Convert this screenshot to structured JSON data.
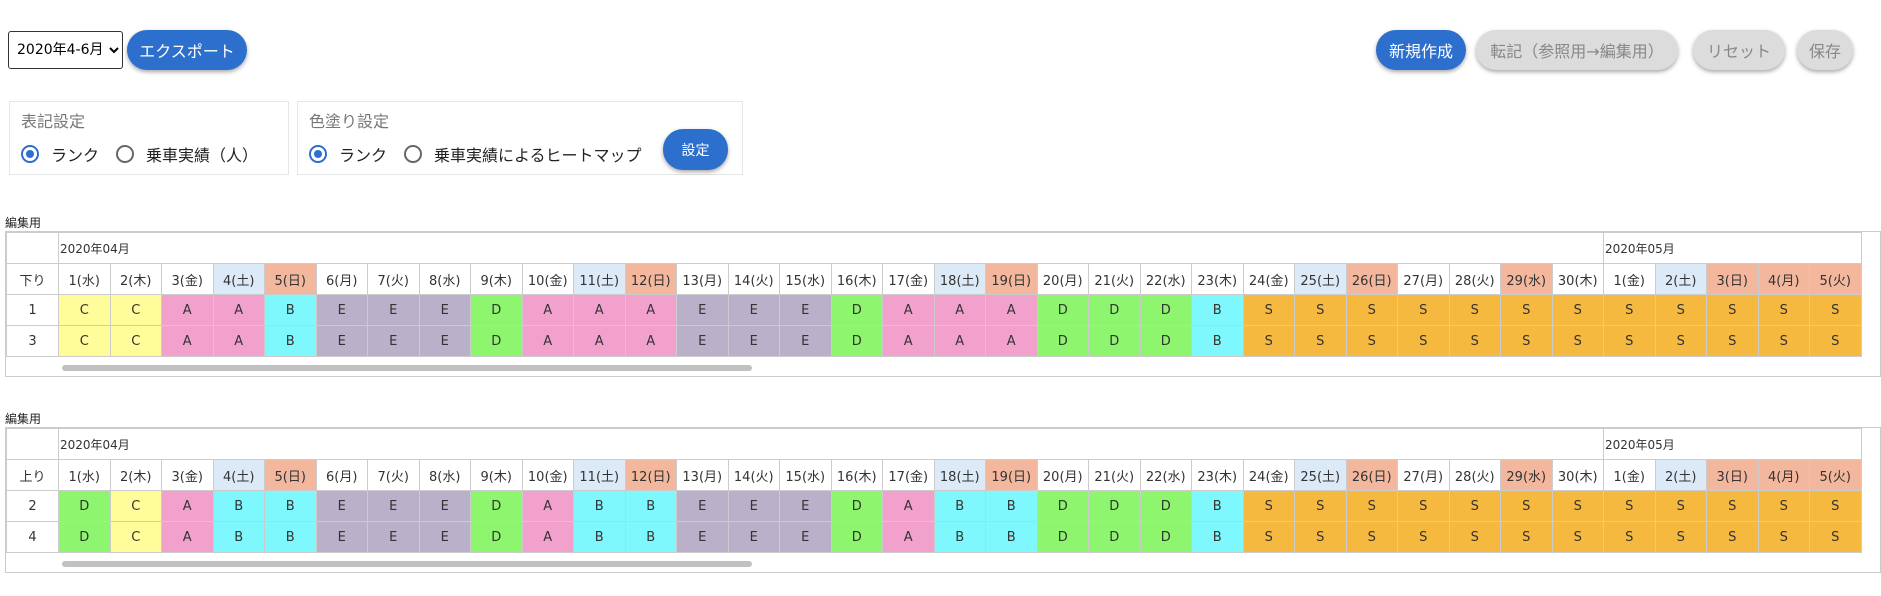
{
  "toolbar": {
    "period_value": "2020年4-6月",
    "period_options": [
      "2020年4-6月"
    ],
    "export_label": "エクスポート",
    "new_label": "新規作成",
    "transfer_label": "転記（参照用→編集用）",
    "reset_label": "リセット",
    "save_label": "保存"
  },
  "notation_panel": {
    "title": "表記設定",
    "options": [
      "ランク",
      "乗車実績（人）"
    ],
    "selected": 0
  },
  "color_panel": {
    "title": "色塗り設定",
    "options": [
      "ランク",
      "乗車実績によるヒートマップ"
    ],
    "selected": 0,
    "apply_label": "設定"
  },
  "colors": {
    "accent": "#2d6fcd",
    "rank": {
      "S": "#f5b93f",
      "A": "#f2a0cc",
      "B": "#7ef8fd",
      "C": "#fffd9a",
      "D": "#8ef56f",
      "E": "#bbb0c9"
    },
    "sat_header": "#dce9f7",
    "sun_header": "#f3b79d"
  },
  "days": [
    {
      "label": "1(水)",
      "type": "w"
    },
    {
      "label": "2(木)",
      "type": "w"
    },
    {
      "label": "3(金)",
      "type": "w"
    },
    {
      "label": "4(土)",
      "type": "sat"
    },
    {
      "label": "5(日)",
      "type": "sun"
    },
    {
      "label": "6(月)",
      "type": "w"
    },
    {
      "label": "7(火)",
      "type": "w"
    },
    {
      "label": "8(水)",
      "type": "w"
    },
    {
      "label": "9(木)",
      "type": "w"
    },
    {
      "label": "10(金)",
      "type": "w"
    },
    {
      "label": "11(土)",
      "type": "sat"
    },
    {
      "label": "12(日)",
      "type": "sun"
    },
    {
      "label": "13(月)",
      "type": "w"
    },
    {
      "label": "14(火)",
      "type": "w"
    },
    {
      "label": "15(水)",
      "type": "w"
    },
    {
      "label": "16(木)",
      "type": "w"
    },
    {
      "label": "17(金)",
      "type": "w"
    },
    {
      "label": "18(土)",
      "type": "sat"
    },
    {
      "label": "19(日)",
      "type": "sun"
    },
    {
      "label": "20(月)",
      "type": "w"
    },
    {
      "label": "21(火)",
      "type": "w"
    },
    {
      "label": "22(水)",
      "type": "w"
    },
    {
      "label": "23(木)",
      "type": "w"
    },
    {
      "label": "24(金)",
      "type": "w"
    },
    {
      "label": "25(土)",
      "type": "sat"
    },
    {
      "label": "26(日)",
      "type": "sun"
    },
    {
      "label": "27(月)",
      "type": "w"
    },
    {
      "label": "28(火)",
      "type": "w"
    },
    {
      "label": "29(水)",
      "type": "sun"
    },
    {
      "label": "30(木)",
      "type": "w"
    },
    {
      "label": "1(金)",
      "type": "w"
    },
    {
      "label": "2(土)",
      "type": "sat"
    },
    {
      "label": "3(日)",
      "type": "sun"
    },
    {
      "label": "4(月)",
      "type": "sun"
    },
    {
      "label": "5(火)",
      "type": "sun"
    }
  ],
  "tables": [
    {
      "section_label": "編集用",
      "months": [
        {
          "label": "2020年04月",
          "span": 30
        },
        {
          "label": "2020年05月",
          "span": 5
        }
      ],
      "direction_label": "下り",
      "rows": [
        {
          "id": "1",
          "cells": [
            "C",
            "C",
            "A",
            "A",
            "B",
            "E",
            "E",
            "E",
            "D",
            "A",
            "A",
            "A",
            "E",
            "E",
            "E",
            "D",
            "A",
            "A",
            "A",
            "D",
            "D",
            "D",
            "B",
            "S",
            "S",
            "S",
            "S",
            "S",
            "S",
            "S",
            "S",
            "S",
            "S",
            "S",
            "S"
          ]
        },
        {
          "id": "3",
          "cells": [
            "C",
            "C",
            "A",
            "A",
            "B",
            "E",
            "E",
            "E",
            "D",
            "A",
            "A",
            "A",
            "E",
            "E",
            "E",
            "D",
            "A",
            "A",
            "A",
            "D",
            "D",
            "D",
            "B",
            "S",
            "S",
            "S",
            "S",
            "S",
            "S",
            "S",
            "S",
            "S",
            "S",
            "S",
            "S"
          ]
        }
      ]
    },
    {
      "section_label": "編集用",
      "months": [
        {
          "label": "2020年04月",
          "span": 30
        },
        {
          "label": "2020年05月",
          "span": 5
        }
      ],
      "direction_label": "上り",
      "rows": [
        {
          "id": "2",
          "cells": [
            "D",
            "C",
            "A",
            "B",
            "B",
            "E",
            "E",
            "E",
            "D",
            "A",
            "B",
            "B",
            "E",
            "E",
            "E",
            "D",
            "A",
            "B",
            "B",
            "D",
            "D",
            "D",
            "B",
            "S",
            "S",
            "S",
            "S",
            "S",
            "S",
            "S",
            "S",
            "S",
            "S",
            "S",
            "S"
          ]
        },
        {
          "id": "4",
          "cells": [
            "D",
            "C",
            "A",
            "B",
            "B",
            "E",
            "E",
            "E",
            "D",
            "A",
            "B",
            "B",
            "E",
            "E",
            "E",
            "D",
            "A",
            "B",
            "B",
            "D",
            "D",
            "D",
            "B",
            "S",
            "S",
            "S",
            "S",
            "S",
            "S",
            "S",
            "S",
            "S",
            "S",
            "S",
            "S"
          ]
        }
      ]
    }
  ]
}
